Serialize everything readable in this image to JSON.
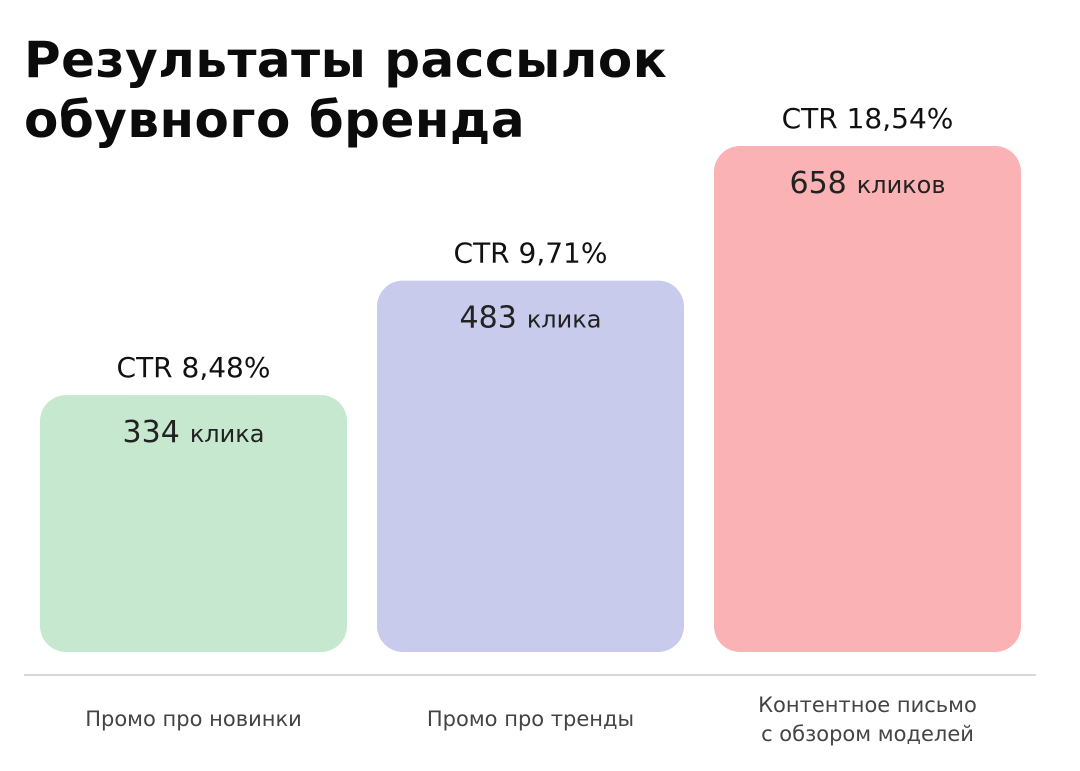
{
  "title_lines": [
    "Результаты рассылок",
    "обувного бренда"
  ],
  "chart_data": {
    "type": "bar",
    "title": "Результаты рассылок обувного бренда",
    "categories": [
      [
        "Промо про новинки"
      ],
      [
        "Промо про тренды"
      ],
      [
        "Контентное письмо",
        "с обзором моделей"
      ]
    ],
    "values": [
      334,
      483,
      658
    ],
    "value_labels": [
      {
        "number": "334",
        "unit": "клика"
      },
      {
        "number": "483",
        "unit": "клика"
      },
      {
        "number": "658",
        "unit": "кликов"
      }
    ],
    "ctr_labels": [
      "CTR 8,48%",
      "CTR 9,71%",
      "CTR 18,54%"
    ],
    "ctr_values": [
      8.48,
      9.71,
      18.54
    ],
    "colors": [
      "#c6e8cf",
      "#c8cbeb",
      "#fab2b4"
    ],
    "baseline_color": "#cccccc",
    "grid": false,
    "legend": "none"
  }
}
